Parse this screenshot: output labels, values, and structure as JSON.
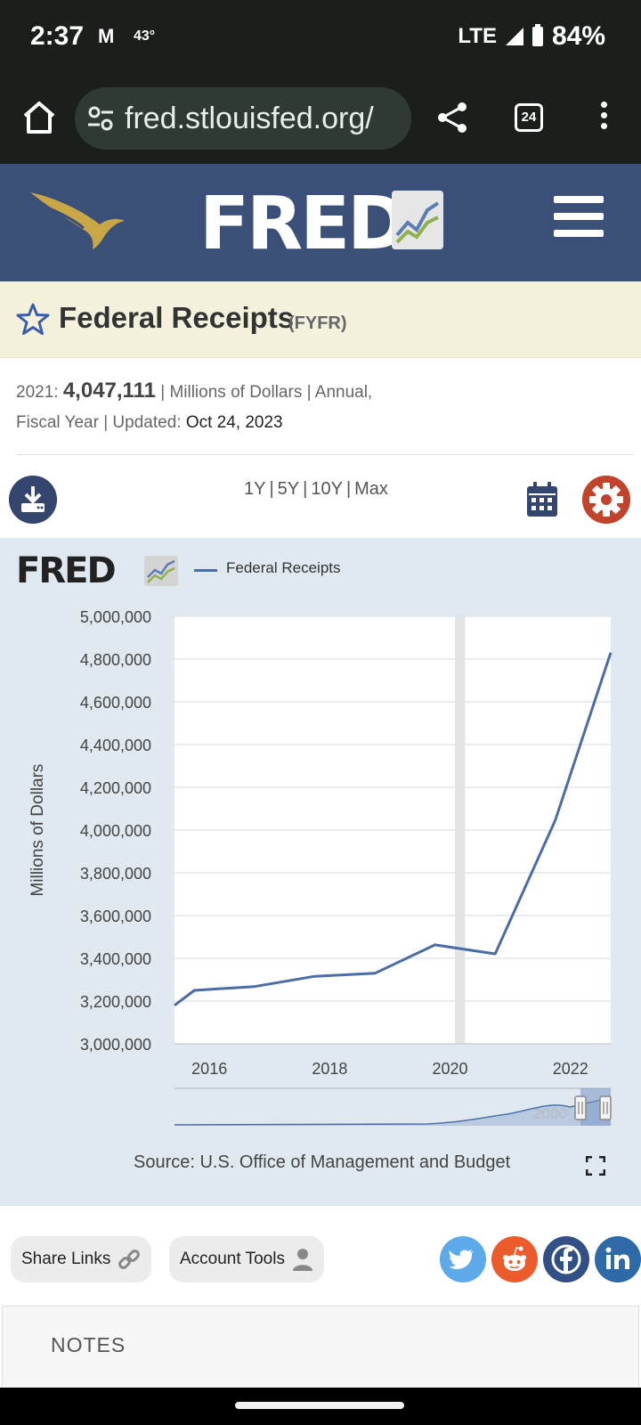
{
  "status_bar": {
    "time": "2:37",
    "mail_icon": "M",
    "temperature": "43°",
    "network": "LTE",
    "battery": "84%"
  },
  "browser": {
    "url": "fred.stlouisfed.org/",
    "tab_count": "24"
  },
  "series": {
    "title": "Federal Receipts",
    "id": "(FYFR)",
    "latest_year": "2021:",
    "latest_value": "4,047,111",
    "meta_units": " | Millions of Dollars | Annual,",
    "meta_line2_prefix": "Fiscal Year | Updated: ",
    "updated": "Oct 24, 2023"
  },
  "ranges": [
    "1Y",
    "5Y",
    "10Y",
    "Max"
  ],
  "chart": {
    "legend": "Federal Receipts",
    "source": "Source: U.S. Office of Management and Budget",
    "navigator_label": "2000"
  },
  "chart_data": {
    "type": "line",
    "title": "",
    "xlabel": "",
    "ylabel": "Millions of Dollars",
    "ylim": [
      3000000,
      5000000
    ],
    "xlim": [
      2015.42,
      2022.67
    ],
    "y_ticks": [
      3000000,
      3200000,
      3400000,
      3600000,
      3800000,
      4000000,
      4200000,
      4400000,
      4600000,
      4800000,
      5000000
    ],
    "y_tick_labels": [
      "3,000,000",
      "3,200,000",
      "3,400,000",
      "3,600,000",
      "3,800,000",
      "4,000,000",
      "4,200,000",
      "4,400,000",
      "4,600,000",
      "4,800,000",
      "5,000,000"
    ],
    "x_ticks": [
      2016,
      2018,
      2020,
      2022
    ],
    "x_tick_labels": [
      "2016",
      "2018",
      "2020",
      "2022"
    ],
    "recession": [
      2020.08,
      2020.25
    ],
    "series": [
      {
        "name": "Federal Receipts",
        "color": "#4a6da7",
        "x": [
          2015.42,
          2015.75,
          2016.75,
          2017.75,
          2018.75,
          2019.75,
          2020.75,
          2021.75,
          2022.67
        ],
        "values": [
          3180000,
          3250000,
          3268000,
          3316000,
          3330000,
          3463000,
          3421000,
          4047111,
          4830000
        ]
      }
    ]
  },
  "actions": {
    "share_links": "Share Links",
    "account_tools": "Account Tools"
  },
  "notes": {
    "title": "NOTES"
  },
  "colors": {
    "header": "#3b5079",
    "title_band": "#f4f1dc",
    "chart_bg": "#e1e9f0",
    "line": "#4a6da7"
  }
}
